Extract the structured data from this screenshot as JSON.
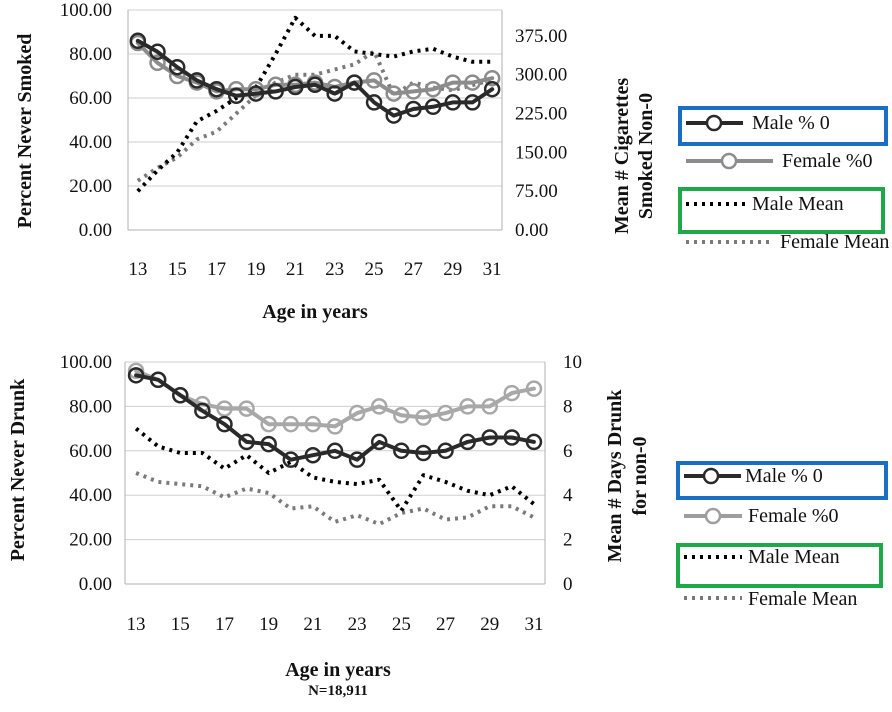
{
  "colors": {
    "male_pct": "#2a2a2a",
    "female_pct": "#8c8c8c",
    "male_mean": "#000000",
    "female_mean": "#7a7a7a",
    "highlight_blue": "#1a6fc4",
    "highlight_green": "#1ea84a"
  },
  "chart_data": [
    {
      "type": "line",
      "title": "",
      "xlabel": "Age in years",
      "ylabel": "Percent Never Smoked",
      "y2label_lines": [
        "Mean # Cigarettes",
        "Smoked Non-0"
      ],
      "x": [
        13,
        14,
        15,
        16,
        17,
        18,
        19,
        20,
        21,
        22,
        23,
        24,
        25,
        26,
        27,
        28,
        29,
        30,
        31
      ],
      "xticks": [
        "13",
        "15",
        "17",
        "19",
        "21",
        "23",
        "25",
        "27",
        "29",
        "31"
      ],
      "yticks": [
        "0.00",
        "20.00",
        "40.00",
        "60.00",
        "80.00",
        "100.00"
      ],
      "y2ticks": [
        "0.00",
        "75.00",
        "150.00",
        "225.00",
        "300.00",
        "375.00"
      ],
      "ylim": [
        0,
        100
      ],
      "y2lim": [
        0,
        425
      ],
      "series": [
        {
          "name": "Male % 0",
          "axis": "left",
          "style": "solid-dark-markers",
          "values": [
            86,
            81,
            74,
            68,
            64,
            61,
            62,
            63,
            65,
            66,
            62,
            67,
            58,
            52,
            55,
            56,
            58,
            58,
            64
          ]
        },
        {
          "name": "Female %0",
          "axis": "left",
          "style": "solid-gray-markers",
          "values": [
            85,
            76,
            70,
            67,
            63,
            64,
            64,
            66,
            66,
            67,
            65,
            67,
            68,
            62,
            63,
            64,
            67,
            67,
            69
          ]
        },
        {
          "name": "Male Mean",
          "axis": "right",
          "style": "dotted-black",
          "values": [
            75,
            115,
            150,
            210,
            230,
            255,
            275,
            340,
            410,
            375,
            375,
            345,
            340,
            335,
            345,
            350,
            335,
            325,
            325
          ]
        },
        {
          "name": "Female Mean",
          "axis": "right",
          "style": "dotted-gray",
          "values": [
            95,
            120,
            140,
            175,
            190,
            225,
            260,
            285,
            300,
            300,
            310,
            320,
            345,
            260,
            285,
            275,
            270,
            280,
            290
          ]
        }
      ],
      "legend": {
        "placement": "right",
        "items": [
          "Male % 0",
          "Female %0",
          "Male Mean",
          "Female Mean"
        ],
        "highlights": [
          "Male % 0 (blue box)",
          "Male Mean (green box)"
        ]
      },
      "footnote": ""
    },
    {
      "type": "line",
      "title": "",
      "xlabel": "Age in years",
      "ylabel": "Percent Never Drunk",
      "y2label_lines": [
        "Mean # Days Drunk",
        "for non-0"
      ],
      "x": [
        13,
        14,
        15,
        16,
        17,
        18,
        19,
        20,
        21,
        22,
        23,
        24,
        25,
        26,
        27,
        28,
        29,
        30,
        31
      ],
      "xticks": [
        "13",
        "15",
        "17",
        "19",
        "21",
        "23",
        "25",
        "27",
        "29",
        "31"
      ],
      "yticks": [
        "0.00",
        "20.00",
        "40.00",
        "60.00",
        "80.00",
        "100.00"
      ],
      "y2ticks": [
        "0",
        "2",
        "4",
        "6",
        "8",
        "10"
      ],
      "ylim": [
        0,
        100
      ],
      "y2lim": [
        0,
        10
      ],
      "series": [
        {
          "name": "Male % 0",
          "axis": "left",
          "style": "solid-dark-markers",
          "values": [
            94,
            92,
            85,
            78,
            72,
            64,
            63,
            56,
            58,
            60,
            56,
            64,
            60,
            59,
            60,
            64,
            66,
            66,
            64
          ]
        },
        {
          "name": "Female %0",
          "axis": "left",
          "style": "solid-light-markers",
          "values": [
            96,
            92,
            85,
            81,
            79,
            79,
            72,
            72,
            72,
            71,
            77,
            80,
            76,
            75,
            77,
            80,
            80,
            86,
            88
          ]
        },
        {
          "name": "Male Mean",
          "axis": "right",
          "style": "dotted-black",
          "values": [
            7.0,
            6.2,
            5.9,
            5.9,
            5.2,
            5.8,
            5.0,
            5.5,
            4.8,
            4.6,
            4.5,
            4.7,
            3.3,
            4.9,
            4.6,
            4.2,
            4.0,
            4.4,
            3.6
          ]
        },
        {
          "name": "Female Mean",
          "axis": "right",
          "style": "dotted-gray",
          "values": [
            5.0,
            4.6,
            4.5,
            4.4,
            3.9,
            4.3,
            4.1,
            3.4,
            3.5,
            2.8,
            3.1,
            2.7,
            3.2,
            3.4,
            2.9,
            3.0,
            3.5,
            3.5,
            3.0
          ]
        }
      ],
      "legend": {
        "placement": "right",
        "items": [
          "Male % 0",
          "Female %0",
          "Male Mean",
          "Female Mean"
        ],
        "highlights": [
          "Male % 0 (blue box)",
          "Male Mean (green box)"
        ]
      },
      "footnote": "N=18,911"
    }
  ]
}
